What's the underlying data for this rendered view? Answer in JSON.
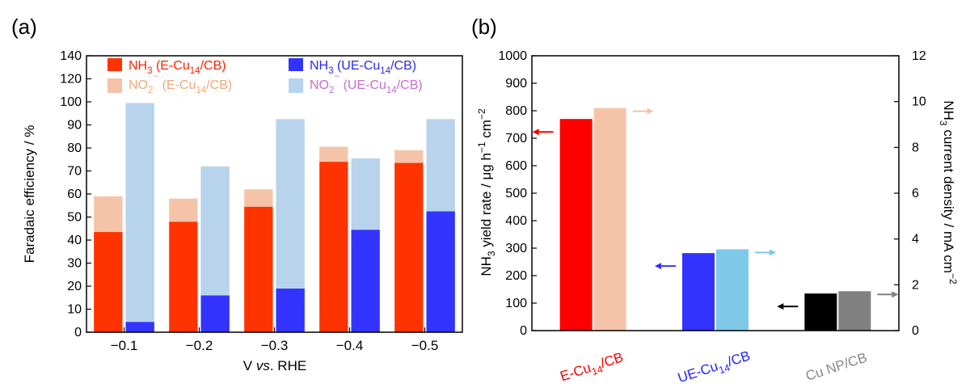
{
  "chart_data": [
    {
      "panel_label": "(a)",
      "type": "bar",
      "stacked_within_group": true,
      "categories": [
        "−0.1",
        "−0.2",
        "−0.3",
        "−0.4",
        "−0.5"
      ],
      "xlabel": "V vs. RHE",
      "ylabel": "Faradaic efficiency / %",
      "ylim": [
        0,
        140
      ],
      "yticks": [
        0,
        10,
        20,
        30,
        40,
        50,
        60,
        70,
        80,
        90,
        100,
        120,
        140
      ],
      "legend_placement": "top",
      "series": [
        {
          "name": "NH3 (E-Cu14/CB)",
          "group": "E-Cu14/CB",
          "values": [
            43.5,
            48,
            54.5,
            74,
            73.5
          ],
          "color": "#ff3300",
          "text_color": "#ff2200"
        },
        {
          "name": "NO2− (E-Cu14/CB)",
          "group": "E-Cu14/CB",
          "values": [
            15.5,
            10,
            7.5,
            6.5,
            5.5
          ],
          "color": "#f5c4a8",
          "text_color": "#f0a878"
        },
        {
          "name": "NH3 (UE-Cu14/CB)",
          "group": "UE-Cu14/CB",
          "values": [
            4.5,
            16,
            19,
            44.5,
            52.5
          ],
          "color": "#3333ff",
          "text_color": "#2a2aee"
        },
        {
          "name": "NO2− (UE-Cu14/CB)",
          "group": "UE-Cu14/CB",
          "values": [
            95,
            56,
            73.5,
            31,
            40
          ],
          "color": "#b8d3ec",
          "text_color": "#c86ed0"
        }
      ]
    },
    {
      "panel_label": "(b)",
      "type": "bar",
      "categories": [
        "E-Cu14/CB",
        "UE-Cu14/CB",
        "Cu NP/CB"
      ],
      "category_colors": [
        "#ff0000",
        "#2222ff",
        "#888888"
      ],
      "ylabel": "NH3 yield rate / μg h−1 cm−2",
      "ylim": [
        0,
        1000
      ],
      "yticks": [
        0,
        100,
        200,
        300,
        400,
        500,
        600,
        700,
        800,
        900,
        1000
      ],
      "y2label": "NH3 current density / mA cm−2",
      "y2lim": [
        0,
        12
      ],
      "y2ticks": [
        0,
        2,
        4,
        6,
        8,
        10,
        12
      ],
      "series": [
        {
          "axis": "left",
          "values": [
            770,
            282,
            135
          ],
          "colors": [
            "#ff0000",
            "#3333ff",
            "#000000"
          ]
        },
        {
          "axis": "right",
          "values": [
            9.72,
            3.55,
            1.72
          ],
          "colors": [
            "#f5c4a8",
            "#7ec8e8",
            "#808080"
          ]
        }
      ]
    }
  ]
}
